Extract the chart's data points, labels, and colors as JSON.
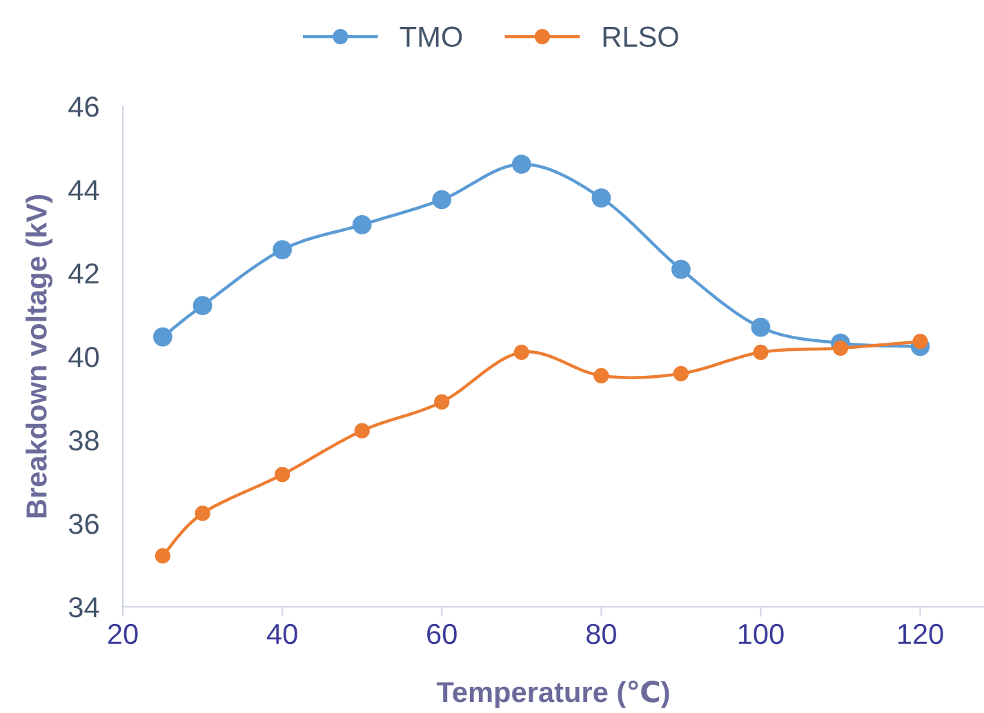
{
  "chart_data": {
    "type": "line",
    "xlabel": "Temperature (℃)",
    "ylabel": "Breakdown voltage (kV)",
    "x": [
      25,
      30,
      40,
      50,
      60,
      70,
      80,
      90,
      100,
      110,
      120
    ],
    "series": [
      {
        "name": "TMO",
        "color": "#5b9bd5",
        "values": [
          40.47,
          41.22,
          42.56,
          43.16,
          43.76,
          44.61,
          43.8,
          42.09,
          40.7,
          40.32,
          40.24
        ]
      },
      {
        "name": "RLSO",
        "color": "#ed7d31",
        "values": [
          35.22,
          36.24,
          37.17,
          38.22,
          38.91,
          40.1,
          39.54,
          39.59,
          40.1,
          40.2,
          40.36
        ]
      }
    ],
    "xlim": [
      20,
      128
    ],
    "xticks": [
      20,
      40,
      60,
      80,
      100,
      120
    ],
    "ylim": [
      34,
      46
    ],
    "yticks": [
      34,
      36,
      38,
      40,
      42,
      44,
      46
    ],
    "grid": false,
    "legend": "top",
    "marker": "circle",
    "line_style": "solid"
  }
}
